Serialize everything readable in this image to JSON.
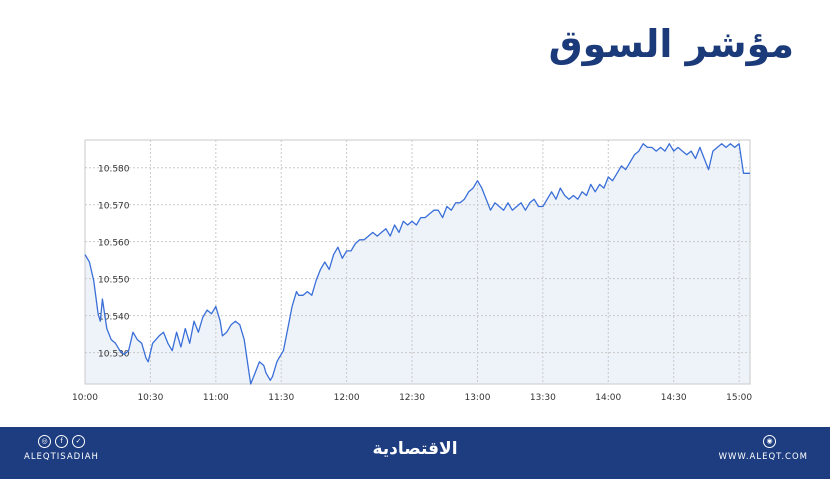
{
  "title": "مؤشر السوق",
  "footer": {
    "handle": "ALEQTISADIAH",
    "brand": "الاقتصادية",
    "website": "WWW.ALEQT.COM",
    "social_icons": [
      "instagram-icon",
      "facebook-icon",
      "twitter-icon"
    ],
    "web_icon": "globe-icon"
  },
  "colors": {
    "title": "#1b3a7a",
    "footer_bg": "#1d3d80",
    "line": "#3a6fd8",
    "fill": "#eef3fa",
    "grid": "#c9c9c9"
  },
  "chart_data": {
    "type": "area",
    "title": "",
    "xlabel": "",
    "ylabel": "",
    "x_ticks": [
      "10:00",
      "10:30",
      "11:00",
      "11:30",
      "12:00",
      "12:30",
      "13:00",
      "13:30",
      "14:00",
      "14:30",
      "15:00"
    ],
    "y_ticks": [
      "10.530",
      "10.540",
      "10.550",
      "10.560",
      "10.570",
      "10.580"
    ],
    "ylim": [
      10.5215,
      10.5875
    ],
    "xlim": [
      "10:00",
      "15:05"
    ],
    "grid": true,
    "series": [
      {
        "points": [
          [
            "10:00",
            10.5565
          ],
          [
            "10:02",
            10.5545
          ],
          [
            "10:04",
            10.5495
          ],
          [
            "10:06",
            10.5405
          ],
          [
            "10:07",
            10.5385
          ],
          [
            "10:08",
            10.5445
          ],
          [
            "10:10",
            10.5365
          ],
          [
            "10:12",
            10.5335
          ],
          [
            "10:14",
            10.5325
          ],
          [
            "10:16",
            10.5305
          ],
          [
            "10:18",
            10.5295
          ],
          [
            "10:20",
            10.5305
          ],
          [
            "10:22",
            10.5355
          ],
          [
            "10:24",
            10.5335
          ],
          [
            "10:26",
            10.5325
          ],
          [
            "10:28",
            10.5285
          ],
          [
            "10:29",
            10.5275
          ],
          [
            "10:31",
            10.5325
          ],
          [
            "10:34",
            10.5345
          ],
          [
            "10:36",
            10.5355
          ],
          [
            "10:38",
            10.5325
          ],
          [
            "10:40",
            10.5305
          ],
          [
            "10:42",
            10.5355
          ],
          [
            "10:44",
            10.5315
          ],
          [
            "10:46",
            10.5365
          ],
          [
            "10:48",
            10.5325
          ],
          [
            "10:50",
            10.5385
          ],
          [
            "10:52",
            10.5355
          ],
          [
            "10:54",
            10.5395
          ],
          [
            "10:56",
            10.5415
          ],
          [
            "10:58",
            10.5405
          ],
          [
            "11:00",
            10.5425
          ],
          [
            "11:02",
            10.5385
          ],
          [
            "11:03",
            10.5345
          ],
          [
            "11:05",
            10.5355
          ],
          [
            "11:07",
            10.5375
          ],
          [
            "11:09",
            10.5385
          ],
          [
            "11:11",
            10.5375
          ],
          [
            "11:13",
            10.5335
          ],
          [
            "11:15",
            10.5255
          ],
          [
            "11:16",
            10.5215
          ],
          [
            "11:18",
            10.5245
          ],
          [
            "11:20",
            10.5275
          ],
          [
            "11:22",
            10.5265
          ],
          [
            "11:23",
            10.5245
          ],
          [
            "11:24",
            10.5235
          ],
          [
            "11:25",
            10.5225
          ],
          [
            "11:26",
            10.5235
          ],
          [
            "11:28",
            10.5275
          ],
          [
            "11:29",
            10.5285
          ],
          [
            "11:31",
            10.5305
          ],
          [
            "11:33",
            10.5365
          ],
          [
            "11:35",
            10.5425
          ],
          [
            "11:37",
            10.5465
          ],
          [
            "11:38",
            10.5455
          ],
          [
            "11:40",
            10.5455
          ],
          [
            "11:42",
            10.5465
          ],
          [
            "11:44",
            10.5455
          ],
          [
            "11:46",
            10.5495
          ],
          [
            "11:48",
            10.5525
          ],
          [
            "11:50",
            10.5545
          ],
          [
            "11:52",
            10.5525
          ],
          [
            "11:54",
            10.5565
          ],
          [
            "11:56",
            10.5585
          ],
          [
            "11:58",
            10.5555
          ],
          [
            "12:00",
            10.5575
          ],
          [
            "12:02",
            10.5575
          ],
          [
            "12:04",
            10.5595
          ],
          [
            "12:06",
            10.5605
          ],
          [
            "12:08",
            10.5605
          ],
          [
            "12:10",
            10.5615
          ],
          [
            "12:12",
            10.5625
          ],
          [
            "12:14",
            10.5615
          ],
          [
            "12:16",
            10.5625
          ],
          [
            "12:18",
            10.5635
          ],
          [
            "12:20",
            10.5615
          ],
          [
            "12:22",
            10.5645
          ],
          [
            "12:24",
            10.5625
          ],
          [
            "12:26",
            10.5655
          ],
          [
            "12:28",
            10.5645
          ],
          [
            "12:30",
            10.5655
          ],
          [
            "12:32",
            10.5645
          ],
          [
            "12:34",
            10.5665
          ],
          [
            "12:36",
            10.5665
          ],
          [
            "12:38",
            10.5675
          ],
          [
            "12:40",
            10.5685
          ],
          [
            "12:42",
            10.5685
          ],
          [
            "12:44",
            10.5665
          ],
          [
            "12:46",
            10.5695
          ],
          [
            "12:48",
            10.5685
          ],
          [
            "12:50",
            10.5705
          ],
          [
            "12:52",
            10.5705
          ],
          [
            "12:54",
            10.5715
          ],
          [
            "12:56",
            10.5735
          ],
          [
            "12:58",
            10.5745
          ],
          [
            "13:00",
            10.5765
          ],
          [
            "13:02",
            10.5745
          ],
          [
            "13:04",
            10.5715
          ],
          [
            "13:06",
            10.5685
          ],
          [
            "13:08",
            10.5705
          ],
          [
            "13:10",
            10.5695
          ],
          [
            "13:12",
            10.5685
          ],
          [
            "13:14",
            10.5705
          ],
          [
            "13:16",
            10.5685
          ],
          [
            "13:18",
            10.5695
          ],
          [
            "13:20",
            10.5705
          ],
          [
            "13:22",
            10.5685
          ],
          [
            "13:24",
            10.5705
          ],
          [
            "13:26",
            10.5715
          ],
          [
            "13:28",
            10.5695
          ],
          [
            "13:30",
            10.5695
          ],
          [
            "13:32",
            10.5715
          ],
          [
            "13:34",
            10.5735
          ],
          [
            "13:36",
            10.5715
          ],
          [
            "13:38",
            10.5745
          ],
          [
            "13:40",
            10.5725
          ],
          [
            "13:42",
            10.5715
          ],
          [
            "13:44",
            10.5725
          ],
          [
            "13:46",
            10.5715
          ],
          [
            "13:48",
            10.5735
          ],
          [
            "13:50",
            10.5725
          ],
          [
            "13:52",
            10.5755
          ],
          [
            "13:54",
            10.5735
          ],
          [
            "13:56",
            10.5755
          ],
          [
            "13:58",
            10.5745
          ],
          [
            "14:00",
            10.5775
          ],
          [
            "14:02",
            10.5765
          ],
          [
            "14:04",
            10.5785
          ],
          [
            "14:06",
            10.5805
          ],
          [
            "14:08",
            10.5795
          ],
          [
            "14:10",
            10.5815
          ],
          [
            "14:12",
            10.5835
          ],
          [
            "14:14",
            10.5845
          ],
          [
            "14:16",
            10.5865
          ],
          [
            "14:18",
            10.5855
          ],
          [
            "14:20",
            10.5855
          ],
          [
            "14:22",
            10.5845
          ],
          [
            "14:24",
            10.5855
          ],
          [
            "14:26",
            10.5845
          ],
          [
            "14:28",
            10.5865
          ],
          [
            "14:30",
            10.5845
          ],
          [
            "14:32",
            10.5855
          ],
          [
            "14:34",
            10.5845
          ],
          [
            "14:36",
            10.5835
          ],
          [
            "14:38",
            10.5845
          ],
          [
            "14:40",
            10.5825
          ],
          [
            "14:42",
            10.5855
          ],
          [
            "14:44",
            10.5825
          ],
          [
            "14:46",
            10.5795
          ],
          [
            "14:48",
            10.5845
          ],
          [
            "14:50",
            10.5855
          ],
          [
            "14:52",
            10.5865
          ],
          [
            "14:54",
            10.5855
          ],
          [
            "14:56",
            10.5865
          ],
          [
            "14:58",
            10.5855
          ],
          [
            "15:00",
            10.5865
          ],
          [
            "15:01",
            10.5825
          ],
          [
            "15:02",
            10.5785
          ],
          [
            "15:04",
            10.5785
          ],
          [
            "15:05",
            10.5785
          ]
        ]
      }
    ]
  }
}
